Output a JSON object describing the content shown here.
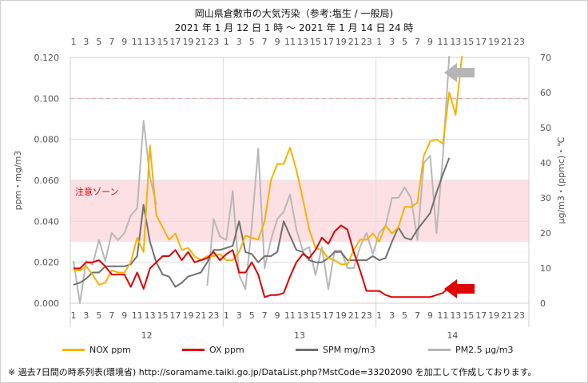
{
  "title": {
    "line1": "岡山県倉敷市の大気汚染（参考:塩生 / 一般局)",
    "line2": "2021 年 1 月 12 日 1 時 ～ 2021 年 1 月 14 日 24 時"
  },
  "zone_label": "注意ゾーン",
  "footnote": "※ 過去7日間の時系列表(環境省) http://soramame.taiki.go.jp/DataList.php?MstCode=33202090 を加工して作成しております。",
  "colors": {
    "nox": "#f5b300",
    "ox": "#e00000",
    "spm": "#707070",
    "pm25": "#b8b8b8",
    "zone": "#fde0e3",
    "dashed": "#e8a0a8",
    "grid": "#dddddd",
    "arrow_gray": "#b5b5b5",
    "arrow_red": "#e00000"
  },
  "chart_data": {
    "type": "line",
    "hour_labels": [
      1,
      3,
      5,
      7,
      9,
      11,
      13,
      15,
      17,
      19,
      21,
      23
    ],
    "day_labels": [
      "12",
      "13",
      "14"
    ],
    "left_axis": {
      "label": "ppm・mg/m3",
      "ylim": [
        0,
        0.12
      ],
      "ticks": [
        "0.000",
        "0.020",
        "0.040",
        "0.060",
        "0.080",
        "0.100",
        "0.120"
      ]
    },
    "right_axis": {
      "label": "μg/m3・(ppmc)・℃",
      "ylim": [
        0,
        70
      ],
      "ticks": [
        "0",
        "10",
        "20",
        "30",
        "40",
        "50",
        "60",
        "70"
      ]
    },
    "caution_zone_left": [
      0.03,
      0.06
    ],
    "dashed_line_left": 0.1,
    "series": [
      {
        "name": "NOX ppm",
        "axis": "left",
        "values": [
          0.016,
          0.016,
          0.018,
          0.014,
          0.009,
          0.01,
          0.016,
          0.015,
          0.015,
          0.02,
          0.032,
          0.025,
          0.077,
          0.043,
          0.037,
          0.031,
          0.034,
          0.026,
          0.027,
          0.023,
          0.021,
          0.023,
          0.023,
          0.024,
          0.021,
          0.021,
          0.025,
          0.033,
          0.032,
          0.031,
          0.04,
          0.06,
          0.068,
          0.068,
          0.076,
          0.065,
          0.051,
          0.036,
          0.027,
          0.026,
          0.022,
          0.021,
          0.019,
          0.019,
          0.026,
          0.031,
          0.031,
          0.034,
          0.03,
          0.038,
          0.034,
          0.037,
          0.047,
          0.047,
          0.049,
          0.072,
          0.079,
          0.08,
          0.078,
          0.103,
          0.092,
          0.122,
          null,
          null,
          null,
          null,
          null,
          null,
          null,
          null,
          null,
          null
        ]
      },
      {
        "name": "OX ppm",
        "axis": "left",
        "values": [
          0.017,
          0.017,
          0.02,
          0.02,
          0.021,
          0.018,
          0.014,
          0.014,
          0.014,
          0.008,
          0.015,
          0.007,
          0.017,
          0.02,
          0.023,
          0.023,
          0.026,
          0.021,
          0.025,
          0.02,
          0.021,
          0.022,
          0.025,
          0.021,
          0.024,
          0.026,
          0.015,
          0.015,
          0.02,
          0.014,
          0.003,
          0.004,
          0.004,
          0.005,
          0.013,
          0.02,
          0.024,
          0.022,
          0.026,
          0.032,
          0.029,
          0.035,
          0.038,
          0.036,
          0.025,
          0.016,
          0.006,
          0.006,
          0.006,
          0.004,
          0.003,
          0.003,
          0.003,
          0.003,
          0.003,
          0.003,
          0.003,
          0.004,
          0.005,
          0.008,
          null,
          null,
          null,
          null,
          null,
          null,
          null,
          null,
          null,
          null,
          null,
          null
        ]
      },
      {
        "name": "SPM mg/m3",
        "axis": "left",
        "values": [
          0.009,
          0.01,
          0.012,
          0.015,
          0.015,
          0.018,
          0.018,
          0.018,
          0.018,
          0.019,
          0.023,
          0.048,
          0.03,
          0.02,
          0.014,
          0.013,
          0.008,
          0.01,
          0.013,
          0.014,
          0.015,
          0.02,
          0.026,
          0.026,
          0.027,
          0.028,
          0.04,
          0.025,
          0.024,
          0.02,
          0.023,
          0.023,
          0.025,
          0.04,
          0.033,
          0.026,
          0.025,
          0.021,
          0.02,
          0.02,
          0.022,
          0.025,
          0.025,
          0.021,
          0.021,
          0.021,
          0.021,
          0.023,
          0.021,
          0.022,
          0.03,
          0.037,
          0.032,
          0.031,
          0.036,
          0.04,
          0.044,
          0.054,
          0.063,
          0.071,
          null,
          null,
          null,
          null,
          null,
          null,
          null,
          null,
          null,
          null,
          null,
          null
        ]
      },
      {
        "name": "PM2.5 μg/m3",
        "axis": "right",
        "values": [
          12,
          0,
          12,
          11,
          18,
          12,
          20,
          18,
          20,
          25,
          27,
          52,
          36,
          28,
          null,
          null,
          null,
          null,
          null,
          null,
          null,
          5,
          24,
          19,
          18,
          32,
          8,
          4,
          22,
          44,
          10,
          18,
          24,
          26,
          31,
          21,
          15,
          16,
          8,
          16,
          4,
          15,
          15,
          10,
          10,
          16,
          20,
          14,
          20,
          22,
          30,
          30,
          33,
          30,
          18,
          40,
          42,
          20,
          42,
          110,
          null,
          null,
          null,
          null,
          null,
          null,
          null,
          null,
          null,
          null,
          null,
          null
        ]
      }
    ]
  },
  "legend": [
    {
      "key": "nox",
      "label": "NOX ppm"
    },
    {
      "key": "ox",
      "label": "OX ppm"
    },
    {
      "key": "spm",
      "label": "SPM mg/m3"
    },
    {
      "key": "pm25",
      "label": "PM2.5 μg/m3"
    }
  ]
}
